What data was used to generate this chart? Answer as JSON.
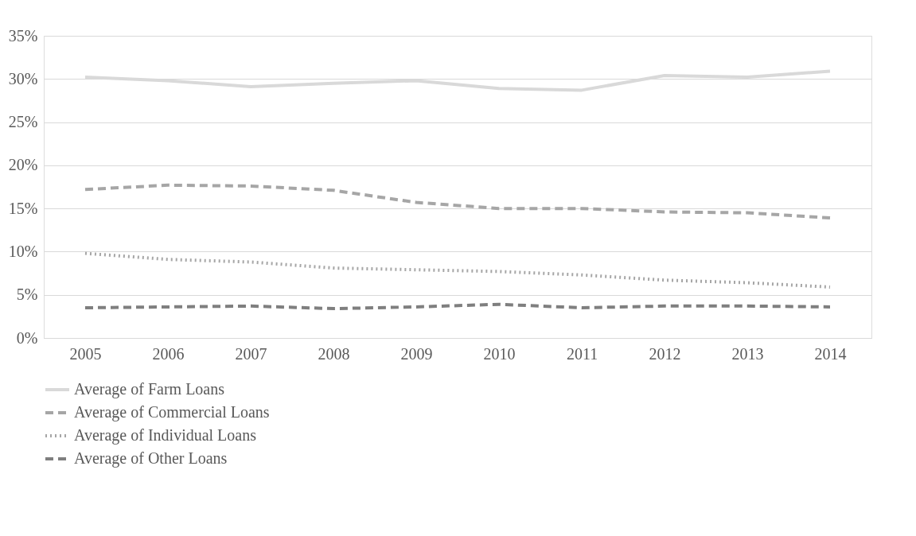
{
  "chart_data": {
    "type": "line",
    "categories": [
      "2005",
      "2006",
      "2007",
      "2008",
      "2009",
      "2010",
      "2011",
      "2012",
      "2013",
      "2014"
    ],
    "series": [
      {
        "name": "Average of Farm Loans",
        "color": "#d9d9d9",
        "line_style": "solid",
        "values": [
          30.2,
          29.8,
          29.1,
          29.5,
          29.8,
          28.9,
          28.7,
          30.4,
          30.2,
          30.9
        ]
      },
      {
        "name": "Average of Commercial Loans",
        "color": "#a6a6a6",
        "line_style": "dashed",
        "values": [
          17.2,
          17.7,
          17.6,
          17.1,
          15.7,
          15.0,
          15.0,
          14.6,
          14.5,
          13.9
        ]
      },
      {
        "name": "Average of Individual Loans",
        "color": "#a6a6a6",
        "line_style": "dotted",
        "values": [
          9.8,
          9.1,
          8.8,
          8.1,
          7.9,
          7.7,
          7.3,
          6.7,
          6.4,
          5.9
        ]
      },
      {
        "name": "Average of Other Loans",
        "color": "#7f7f7f",
        "line_style": "dashed",
        "values": [
          3.5,
          3.6,
          3.7,
          3.4,
          3.6,
          3.9,
          3.5,
          3.7,
          3.7,
          3.6
        ]
      }
    ],
    "ylim": [
      0,
      35
    ],
    "yticks": [
      {
        "value": 0,
        "label": "0%"
      },
      {
        "value": 5,
        "label": "5%"
      },
      {
        "value": 10,
        "label": "10%"
      },
      {
        "value": 15,
        "label": "15%"
      },
      {
        "value": 20,
        "label": "20%"
      },
      {
        "value": 25,
        "label": "25%"
      },
      {
        "value": 30,
        "label": "30%"
      },
      {
        "value": 35,
        "label": "35%"
      }
    ],
    "grid": "y",
    "legend": "bottom",
    "marker": "none"
  }
}
